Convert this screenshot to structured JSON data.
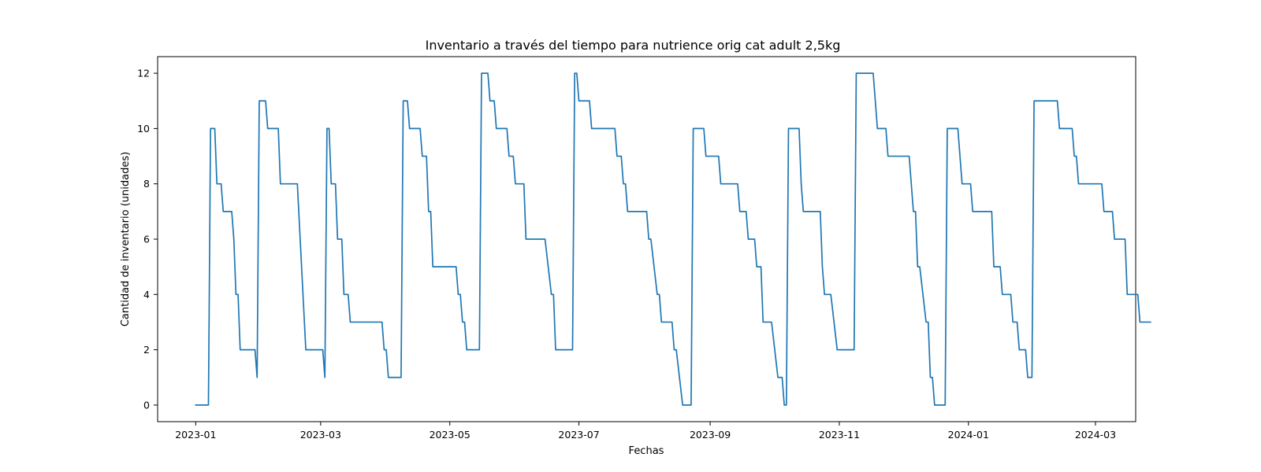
{
  "chart_data": {
    "type": "line",
    "title": "Inventario a través del tiempo para nutrience orig cat adult 2,5kg",
    "xlabel": "Fechas",
    "ylabel": "Cantidad de inventario (unidades)",
    "xlim": [
      "2022-12-14",
      "2024-03-20"
    ],
    "ylim": [
      -0.6,
      12.6
    ],
    "grid": false,
    "legend": "none",
    "line_color": "#1f77b4",
    "x_ticks": [
      "2023-01-01",
      "2023-03-01",
      "2023-05-01",
      "2023-07-01",
      "2023-09-01",
      "2023-11-01",
      "2024-01-01",
      "2024-03-01"
    ],
    "x_tick_labels": [
      "2023-01",
      "2023-03",
      "2023-05",
      "2023-07",
      "2023-09",
      "2023-11",
      "2024-01",
      "2024-03"
    ],
    "y_ticks": [
      0,
      2,
      4,
      6,
      8,
      10,
      12
    ],
    "y_tick_labels": [
      "0",
      "2",
      "4",
      "6",
      "8",
      "10",
      "12"
    ],
    "series": [
      {
        "points": [
          [
            "2023-01-01",
            0
          ],
          [
            "2023-01-07",
            0
          ],
          [
            "2023-01-08",
            10
          ],
          [
            "2023-01-10",
            10
          ],
          [
            "2023-01-11",
            8
          ],
          [
            "2023-01-13",
            8
          ],
          [
            "2023-01-14",
            7
          ],
          [
            "2023-01-18",
            7
          ],
          [
            "2023-01-19",
            6
          ],
          [
            "2023-01-20",
            4
          ],
          [
            "2023-01-21",
            4
          ],
          [
            "2023-01-22",
            2
          ],
          [
            "2023-01-29",
            2
          ],
          [
            "2023-01-30",
            1
          ],
          [
            "2023-01-31",
            11
          ],
          [
            "2023-02-03",
            11
          ],
          [
            "2023-02-04",
            10
          ],
          [
            "2023-02-09",
            10
          ],
          [
            "2023-02-10",
            8
          ],
          [
            "2023-02-18",
            8
          ],
          [
            "2023-02-22",
            2
          ],
          [
            "2023-03-02",
            2
          ],
          [
            "2023-03-03",
            1
          ],
          [
            "2023-03-04",
            10
          ],
          [
            "2023-03-05",
            10
          ],
          [
            "2023-03-06",
            8
          ],
          [
            "2023-03-08",
            8
          ],
          [
            "2023-03-09",
            6
          ],
          [
            "2023-03-11",
            6
          ],
          [
            "2023-03-12",
            4
          ],
          [
            "2023-03-14",
            4
          ],
          [
            "2023-03-15",
            3
          ],
          [
            "2023-03-30",
            3
          ],
          [
            "2023-03-31",
            2
          ],
          [
            "2023-04-01",
            2
          ],
          [
            "2023-04-02",
            1
          ],
          [
            "2023-04-08",
            1
          ],
          [
            "2023-04-09",
            11
          ],
          [
            "2023-04-11",
            11
          ],
          [
            "2023-04-12",
            10
          ],
          [
            "2023-04-17",
            10
          ],
          [
            "2023-04-18",
            9
          ],
          [
            "2023-04-20",
            9
          ],
          [
            "2023-04-21",
            7
          ],
          [
            "2023-04-22",
            7
          ],
          [
            "2023-04-23",
            5
          ],
          [
            "2023-05-04",
            5
          ],
          [
            "2023-05-05",
            4
          ],
          [
            "2023-05-06",
            4
          ],
          [
            "2023-05-07",
            3
          ],
          [
            "2023-05-08",
            3
          ],
          [
            "2023-05-09",
            2
          ],
          [
            "2023-05-15",
            2
          ],
          [
            "2023-05-16",
            12
          ],
          [
            "2023-05-19",
            12
          ],
          [
            "2023-05-20",
            11
          ],
          [
            "2023-05-22",
            11
          ],
          [
            "2023-05-23",
            10
          ],
          [
            "2023-05-28",
            10
          ],
          [
            "2023-05-29",
            9
          ],
          [
            "2023-05-31",
            9
          ],
          [
            "2023-06-01",
            8
          ],
          [
            "2023-06-05",
            8
          ],
          [
            "2023-06-06",
            6
          ],
          [
            "2023-06-15",
            6
          ],
          [
            "2023-06-18",
            4
          ],
          [
            "2023-06-19",
            4
          ],
          [
            "2023-06-20",
            2
          ],
          [
            "2023-06-28",
            2
          ],
          [
            "2023-06-29",
            12
          ],
          [
            "2023-06-30",
            12
          ],
          [
            "2023-07-01",
            11
          ],
          [
            "2023-07-06",
            11
          ],
          [
            "2023-07-07",
            10
          ],
          [
            "2023-07-18",
            10
          ],
          [
            "2023-07-19",
            9
          ],
          [
            "2023-07-21",
            9
          ],
          [
            "2023-07-22",
            8
          ],
          [
            "2023-07-23",
            8
          ],
          [
            "2023-07-24",
            7
          ],
          [
            "2023-08-02",
            7
          ],
          [
            "2023-08-03",
            6
          ],
          [
            "2023-08-04",
            6
          ],
          [
            "2023-08-07",
            4
          ],
          [
            "2023-08-08",
            4
          ],
          [
            "2023-08-09",
            3
          ],
          [
            "2023-08-14",
            3
          ],
          [
            "2023-08-15",
            2
          ],
          [
            "2023-08-16",
            2
          ],
          [
            "2023-08-19",
            0
          ],
          [
            "2023-08-23",
            0
          ],
          [
            "2023-08-24",
            10
          ],
          [
            "2023-08-29",
            10
          ],
          [
            "2023-08-30",
            9
          ],
          [
            "2023-09-05",
            9
          ],
          [
            "2023-09-06",
            8
          ],
          [
            "2023-09-14",
            8
          ],
          [
            "2023-09-15",
            7
          ],
          [
            "2023-09-18",
            7
          ],
          [
            "2023-09-19",
            6
          ],
          [
            "2023-09-22",
            6
          ],
          [
            "2023-09-23",
            5
          ],
          [
            "2023-09-25",
            5
          ],
          [
            "2023-09-26",
            3
          ],
          [
            "2023-09-30",
            3
          ],
          [
            "2023-10-03",
            1
          ],
          [
            "2023-10-05",
            1
          ],
          [
            "2023-10-06",
            0
          ],
          [
            "2023-10-07",
            0
          ],
          [
            "2023-10-08",
            10
          ],
          [
            "2023-10-13",
            10
          ],
          [
            "2023-10-14",
            8
          ],
          [
            "2023-10-15",
            7
          ],
          [
            "2023-10-23",
            7
          ],
          [
            "2023-10-24",
            5
          ],
          [
            "2023-10-25",
            4
          ],
          [
            "2023-10-28",
            4
          ],
          [
            "2023-10-31",
            2
          ],
          [
            "2023-11-08",
            2
          ],
          [
            "2023-11-09",
            12
          ],
          [
            "2023-11-17",
            12
          ],
          [
            "2023-11-19",
            10
          ],
          [
            "2023-11-23",
            10
          ],
          [
            "2023-11-24",
            9
          ],
          [
            "2023-12-04",
            9
          ],
          [
            "2023-12-06",
            7
          ],
          [
            "2023-12-07",
            7
          ],
          [
            "2023-12-08",
            5
          ],
          [
            "2023-12-09",
            5
          ],
          [
            "2023-12-12",
            3
          ],
          [
            "2023-12-13",
            3
          ],
          [
            "2023-12-14",
            1
          ],
          [
            "2023-12-15",
            1
          ],
          [
            "2023-12-16",
            0
          ],
          [
            "2023-12-21",
            0
          ],
          [
            "2023-12-22",
            10
          ],
          [
            "2023-12-27",
            10
          ],
          [
            "2023-12-29",
            8
          ],
          [
            "2024-01-02",
            8
          ],
          [
            "2024-01-03",
            7
          ],
          [
            "2024-01-12",
            7
          ],
          [
            "2024-01-13",
            5
          ],
          [
            "2024-01-16",
            5
          ],
          [
            "2024-01-17",
            4
          ],
          [
            "2024-01-21",
            4
          ],
          [
            "2024-01-22",
            3
          ],
          [
            "2024-01-24",
            3
          ],
          [
            "2024-01-25",
            2
          ],
          [
            "2024-01-28",
            2
          ],
          [
            "2024-01-29",
            1
          ],
          [
            "2024-01-31",
            1
          ],
          [
            "2024-02-01",
            11
          ],
          [
            "2024-02-12",
            11
          ],
          [
            "2024-02-13",
            10
          ],
          [
            "2024-02-19",
            10
          ],
          [
            "2024-02-20",
            9
          ],
          [
            "2024-02-21",
            9
          ],
          [
            "2024-02-22",
            8
          ],
          [
            "2024-03-04",
            8
          ],
          [
            "2024-03-05",
            7
          ],
          [
            "2024-03-09",
            7
          ],
          [
            "2024-03-10",
            6
          ],
          [
            "2024-03-15",
            6
          ],
          [
            "2024-03-16",
            4
          ],
          [
            "2024-03-21",
            4
          ],
          [
            "2024-03-22",
            3
          ],
          [
            "2024-03-27",
            3
          ]
        ]
      }
    ]
  }
}
